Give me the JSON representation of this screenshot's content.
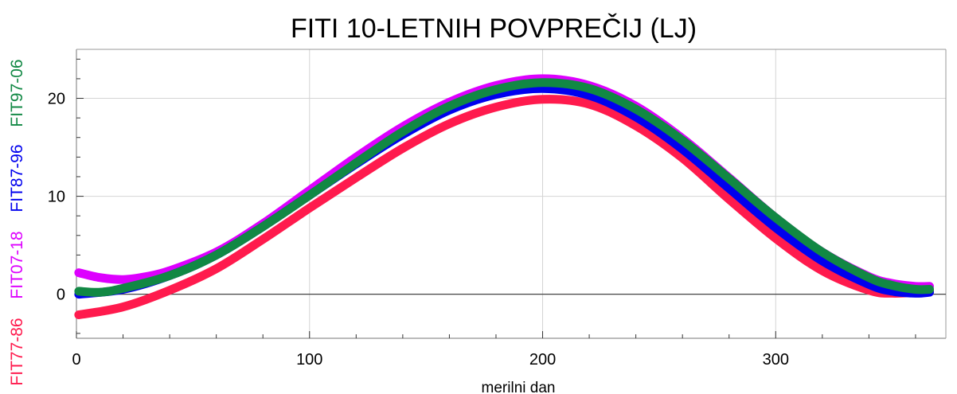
{
  "chart_data": {
    "type": "line",
    "title": "FITI 10-LETNIH POVPREČIJ (LJ)",
    "xlabel": "merilni dan",
    "ylabel": "",
    "xlim": [
      0,
      373
    ],
    "ylim": [
      -4.5,
      25
    ],
    "xticks": [
      0,
      100,
      200,
      300
    ],
    "yticks": [
      0,
      10,
      20
    ],
    "grid": true,
    "legend_position": "left-vertical",
    "series": [
      {
        "name": "FIT77-86",
        "color": "#ff1a4d",
        "x": [
          1,
          20,
          40,
          60,
          80,
          100,
          120,
          140,
          160,
          180,
          200,
          220,
          240,
          260,
          280,
          300,
          320,
          340,
          350,
          360,
          366
        ],
        "y": [
          -2.1,
          -1.3,
          0.4,
          2.6,
          5.6,
          8.8,
          11.9,
          14.9,
          17.4,
          19.1,
          19.9,
          19.4,
          17.2,
          13.9,
          9.7,
          5.7,
          2.4,
          0.4,
          0.1,
          0.2,
          0.3
        ]
      },
      {
        "name": "FIT07-18",
        "color": "#dd00ff",
        "x": [
          1,
          10,
          20,
          30,
          40,
          60,
          80,
          100,
          120,
          140,
          160,
          180,
          200,
          220,
          240,
          260,
          280,
          300,
          320,
          340,
          350,
          360,
          366
        ],
        "y": [
          2.2,
          1.7,
          1.5,
          1.8,
          2.4,
          4.3,
          7.2,
          10.6,
          14.0,
          17.1,
          19.6,
          21.3,
          22.0,
          21.3,
          19.2,
          15.9,
          11.9,
          7.8,
          4.3,
          1.8,
          1.1,
          0.8,
          0.8
        ]
      },
      {
        "name": "FIT87-96",
        "color": "#0000ee",
        "x": [
          1,
          20,
          40,
          60,
          80,
          100,
          120,
          140,
          160,
          180,
          200,
          220,
          240,
          260,
          280,
          300,
          320,
          340,
          350,
          360,
          366
        ],
        "y": [
          0.0,
          0.5,
          1.9,
          4.0,
          6.9,
          10.1,
          13.3,
          16.3,
          18.8,
          20.4,
          21.0,
          20.3,
          18.1,
          14.8,
          10.8,
          6.8,
          3.4,
          1.0,
          0.3,
          0.1,
          0.2
        ]
      },
      {
        "name": "FIT97-06",
        "color": "#118844",
        "x": [
          1,
          10,
          20,
          40,
          60,
          80,
          100,
          120,
          140,
          160,
          180,
          200,
          220,
          240,
          260,
          280,
          300,
          320,
          340,
          350,
          360,
          366
        ],
        "y": [
          0.3,
          0.2,
          0.6,
          1.9,
          4.0,
          6.9,
          10.1,
          13.4,
          16.6,
          19.2,
          20.9,
          21.6,
          21.0,
          18.9,
          15.7,
          11.8,
          7.8,
          4.3,
          1.7,
          0.9,
          0.5,
          0.5
        ]
      }
    ]
  }
}
